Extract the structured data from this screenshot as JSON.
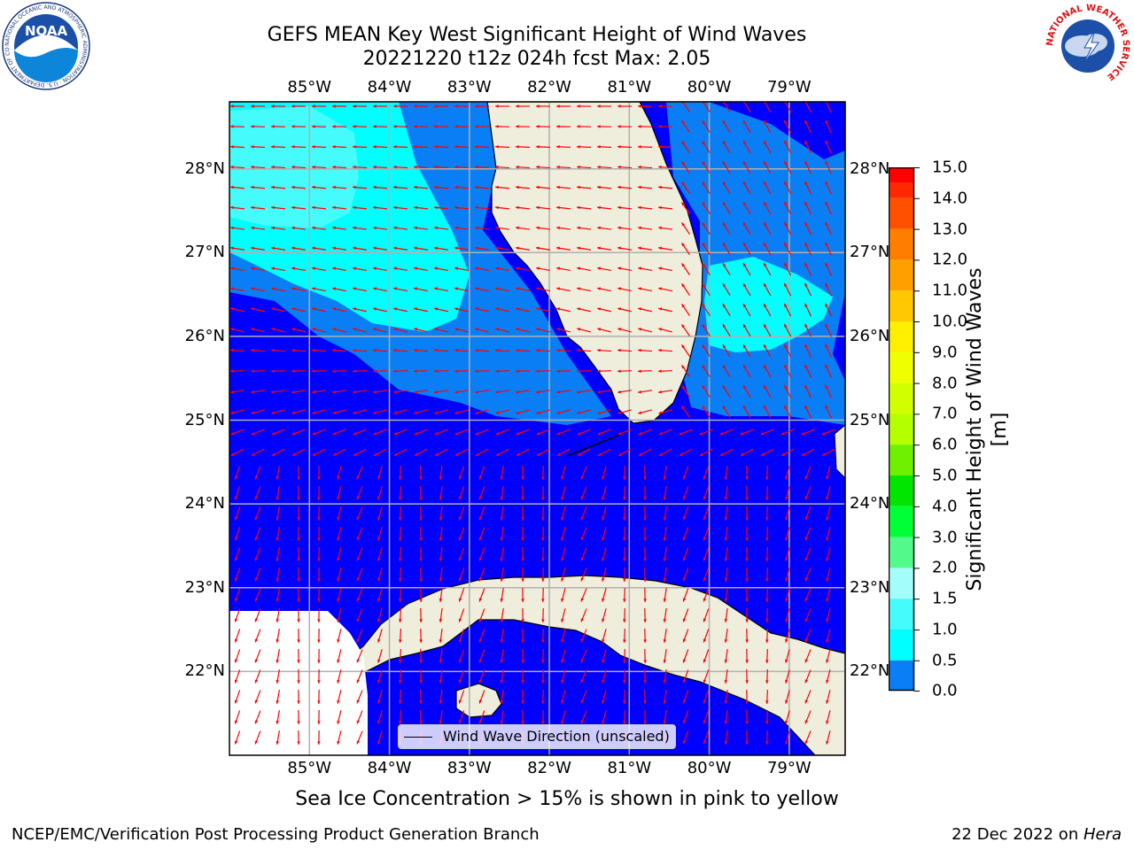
{
  "title": {
    "line1": "GEFS MEAN Key West Significant Height of Wind Waves",
    "line2": "20221220 t12z 024h fcst   Max: 2.05"
  },
  "map": {
    "extent": {
      "lon_min": -86.0,
      "lon_max": -78.3,
      "lat_min": 21.0,
      "lat_max": 28.8
    },
    "lon_ticks": [
      "85°W",
      "84°W",
      "83°W",
      "82°W",
      "81°W",
      "80°W",
      "79°W"
    ],
    "lat_ticks": [
      "28°N",
      "27°N",
      "26°N",
      "25°N",
      "24°N",
      "23°N",
      "22°N"
    ],
    "colors": {
      "level_0_0_5": "#0000ff",
      "level_0_5_1_0": "#0a7ff5",
      "level_1_0_1_5": "#00ffff",
      "level_1_5_2_0": "#46fbfb",
      "land": "#efeddc",
      "arrow": "#ff0000",
      "grid": "#b0b0b0"
    },
    "arrow_direction": "westward in north, southward in south"
  },
  "legend": {
    "label": "Wind Wave Direction (unscaled)"
  },
  "colorbar": {
    "label": "Significant Height of Wind Waves [m]",
    "ticks": [
      "15.0",
      "14.0",
      "13.0",
      "12.0",
      "11.0",
      "10.0",
      "9.0",
      "8.0",
      "7.0",
      "6.0",
      "5.0",
      "4.0",
      "3.0",
      "2.0",
      "1.5",
      "1.0",
      "0.5",
      "0.0"
    ],
    "colors_top_to_bottom": [
      "#ff0000",
      "#ff2800",
      "#ff5000",
      "#ff7d00",
      "#ffa000",
      "#ffc800",
      "#ffef00",
      "#f0ff00",
      "#d2ff00",
      "#b4ff00",
      "#6ef000",
      "#00e600",
      "#00ff36",
      "#53f98b",
      "#a3fdfa",
      "#46fbfb",
      "#00ffff",
      "#0a7ff5",
      "#0000ff"
    ]
  },
  "subtitle": "Sea Ice Concentration > 15% is shown in pink to yellow",
  "footer": {
    "left": "NCEP/EMC/Verification Post Processing Product Generation Branch",
    "right_date": "22 Dec 2022 on ",
    "right_machine": "Hera"
  },
  "logos": {
    "noaa": {
      "text": "NOAA",
      "ring": "NATIONAL OCEANIC AND ATMOSPHERIC ADMINISTRATION · U.S. DEPARTMENT OF COMMERCE"
    },
    "nws": {
      "ring": "NATIONAL WEATHER SERVICE"
    }
  }
}
